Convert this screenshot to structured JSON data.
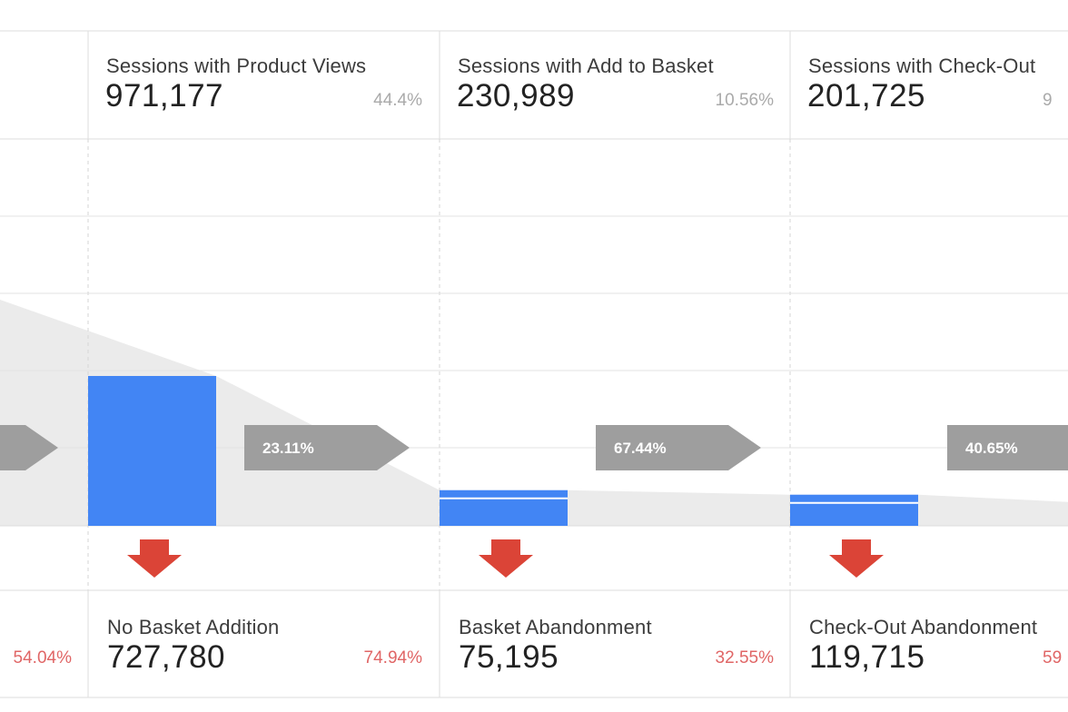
{
  "chart_data": {
    "type": "funnel",
    "steps": [
      {
        "label": "Sessions with Product Views",
        "value": "971,177",
        "pct": "44.4%",
        "n": 971177
      },
      {
        "label": "Sessions with Add to Basket",
        "value": "230,989",
        "pct": "10.56%",
        "n": 230989
      },
      {
        "label": "Sessions with Check-Out",
        "value": "201,725",
        "pct": "9",
        "n": 201725
      }
    ],
    "conversion_rates": [
      "23.11%",
      "67.44%",
      "40.65%"
    ],
    "dropoffs": [
      {
        "label": "No Basket Addition",
        "value": "727,780",
        "pct": "74.94%"
      },
      {
        "label": "Basket Abandonment",
        "value": "75,195",
        "pct": "32.55%"
      },
      {
        "label": "Check-Out Abandonment",
        "value": "119,715",
        "pct": "59"
      }
    ],
    "left_partial_pct": "54.04%",
    "grid": true
  },
  "colors": {
    "bar": "#4285f4",
    "arrow_badge": "#9e9e9e",
    "drop_arrow": "#db4437",
    "drop_pct": "#e06666",
    "funnel_shade": "#ebebeb"
  },
  "icons": {
    "drop": "down-arrow-icon",
    "flow": "right-arrow-icon"
  }
}
